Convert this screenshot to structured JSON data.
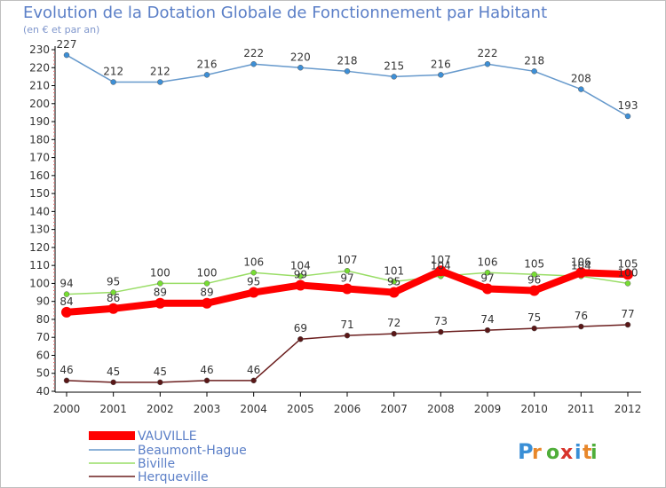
{
  "title": "Evolution de la Dotation Globale de Fonctionnement par Habitant",
  "subtitle": "(en € et par an)",
  "logo_text": "Proxiti",
  "chart_data": {
    "type": "line",
    "title": "Evolution de la Dotation Globale de Fonctionnement par Habitant",
    "ylabel": "(en € et par an)",
    "ylim": [
      40,
      230
    ],
    "yticks": [
      40,
      50,
      60,
      70,
      80,
      90,
      100,
      110,
      120,
      130,
      140,
      150,
      160,
      170,
      180,
      190,
      200,
      210,
      220,
      230
    ],
    "grid": false,
    "legend": "bottom-left",
    "x": [
      "2000",
      "2001",
      "2002",
      "2003",
      "2004",
      "2005",
      "2006",
      "2007",
      "2008",
      "2009",
      "2010",
      "2011",
      "2012"
    ],
    "series": [
      {
        "name": "VAUVILLE",
        "color": "#ff0000",
        "values": [
          84,
          86,
          89,
          89,
          95,
          99,
          97,
          95,
          107,
          97,
          96,
          106,
          105
        ]
      },
      {
        "name": "Beaumont-Hague",
        "color": "#6699cc",
        "values": [
          227,
          212,
          212,
          216,
          222,
          220,
          218,
          215,
          216,
          222,
          218,
          208,
          193
        ]
      },
      {
        "name": "Biville",
        "color": "#99dd66",
        "values": [
          94,
          95,
          100,
          100,
          106,
          104,
          107,
          101,
          104,
          106,
          105,
          104,
          100
        ]
      },
      {
        "name": "Herqueville",
        "color": "#6b1e1e",
        "values": [
          46,
          45,
          45,
          46,
          46,
          69,
          71,
          72,
          73,
          74,
          75,
          76,
          77
        ]
      }
    ]
  }
}
